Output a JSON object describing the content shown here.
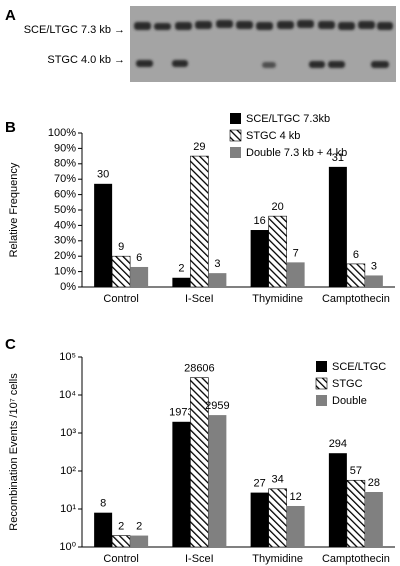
{
  "gel": {
    "panel": "A",
    "band_labels": [
      "SCE/LTGC 7.3 kb →",
      "STGC 4.0 kb →"
    ]
  },
  "chart_data": [
    {
      "type": "bar",
      "panel": "B",
      "y_label": "Relative Frequency",
      "categories": [
        "Control",
        "I-SceI",
        "Thymidine",
        "Camptothecin"
      ],
      "series": [
        {
          "name": "SCE/LTGC 7.3kb",
          "color": "#000000",
          "values": [
            67,
            6,
            37,
            78
          ],
          "counts": [
            30,
            2,
            16,
            31
          ]
        },
        {
          "name": "STGC 4 kb",
          "color": "#000000",
          "pattern": "diagonal-hatch",
          "values": [
            20,
            85,
            46,
            15
          ],
          "counts": [
            9,
            29,
            20,
            6
          ]
        },
        {
          "name": "Double 7.3 kb + 4 kb",
          "color": "#808080",
          "values": [
            13,
            9,
            16,
            7.5
          ],
          "counts": [
            6,
            3,
            7,
            3
          ]
        }
      ],
      "ylim": [
        0,
        100
      ],
      "yticks": [
        {
          "value": 0,
          "label": "0%"
        },
        {
          "value": 10,
          "label": "10%"
        },
        {
          "value": 20,
          "label": "20%"
        },
        {
          "value": 30,
          "label": "30%"
        },
        {
          "value": 40,
          "label": "40%"
        },
        {
          "value": 50,
          "label": "50%"
        },
        {
          "value": 60,
          "label": "60%"
        },
        {
          "value": 70,
          "label": "70%"
        },
        {
          "value": 80,
          "label": "80%"
        },
        {
          "value": 90,
          "label": "90%"
        },
        {
          "value": 100,
          "label": "100%"
        }
      ],
      "legend": "upper-right"
    },
    {
      "type": "bar",
      "panel": "C",
      "y_label": "Recombination Events /10⁷ cells",
      "log_scale": true,
      "categories": [
        "Control",
        "I-SceI",
        "Thymidine",
        "Camptothecin"
      ],
      "series": [
        {
          "name": "SCE/LTGC",
          "color": "#000000",
          "values": [
            8,
            1973,
            27,
            294
          ]
        },
        {
          "name": "STGC",
          "color": "#000000",
          "pattern": "diagonal-hatch",
          "values": [
            2,
            28606,
            34,
            57
          ]
        },
        {
          "name": "Double",
          "color": "#808080",
          "values": [
            2,
            2959,
            12,
            28
          ]
        }
      ],
      "ylim": [
        1,
        100000
      ],
      "yticks": [
        {
          "value": 1,
          "label": "10⁰"
        },
        {
          "value": 10,
          "label": "10¹"
        },
        {
          "value": 100,
          "label": "10²"
        },
        {
          "value": 1000,
          "label": "10³"
        },
        {
          "value": 10000,
          "label": "10⁴"
        },
        {
          "value": 100000,
          "label": "10⁵"
        }
      ],
      "legend": "upper-right"
    }
  ]
}
